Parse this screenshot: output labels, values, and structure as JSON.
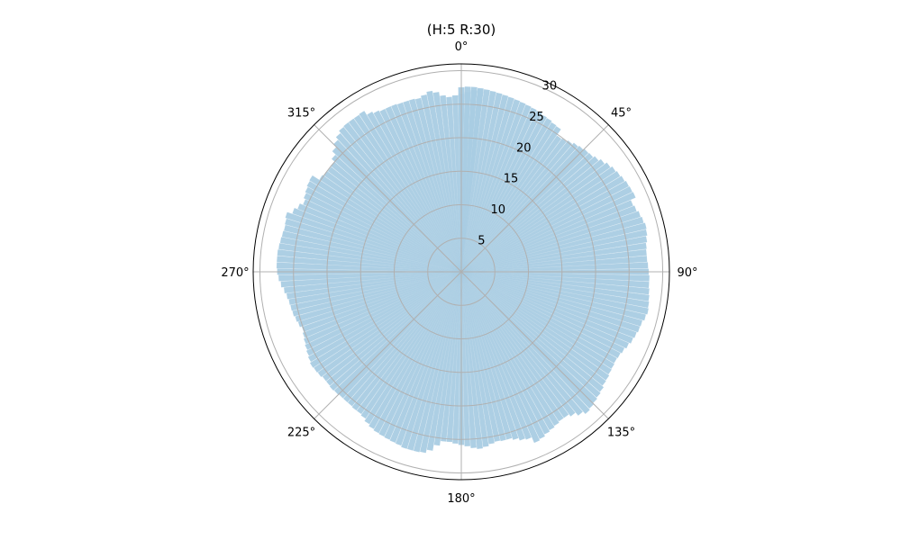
{
  "chart_data": {
    "type": "bar",
    "projection": "polar",
    "title": "(H:5  R:30)",
    "theta_zero_location": "N",
    "theta_direction": "clockwise",
    "angular_ticks": [
      "0°",
      "45°",
      "90°",
      "135°",
      "180°",
      "225°",
      "270°",
      "315°"
    ],
    "radial_ticks": [
      5,
      10,
      15,
      20,
      25,
      30
    ],
    "rlim": [
      0,
      31
    ],
    "grid": true,
    "bar_color": "#a9cce3",
    "bar_alpha": 0.95,
    "bins": 180,
    "bin_width_deg": 2,
    "values": [
      27.5,
      27.6,
      27.6,
      27.5,
      27.4,
      27.3,
      27.2,
      27.1,
      27.0,
      26.9,
      26.8,
      26.7,
      26.6,
      26.5,
      26.3,
      26.2,
      26.0,
      25.9,
      24.8,
      24.9,
      25.2,
      25.5,
      25.7,
      25.9,
      26.0,
      26.3,
      26.7,
      27.1,
      27.4,
      27.6,
      27.8,
      28.0,
      28.1,
      28.2,
      27.4,
      27.6,
      27.9,
      28.1,
      28.3,
      28.2,
      28.0,
      27.8,
      27.7,
      27.7,
      27.8,
      27.9,
      28.0,
      28.0,
      28.1,
      28.2,
      28.3,
      28.4,
      28.2,
      27.9,
      27.8,
      27.6,
      27.4,
      27.1,
      26.8,
      26.6,
      26.5,
      26.6,
      26.7,
      26.9,
      27.0,
      27.3,
      27.5,
      27.7,
      27.9,
      28.1,
      27.6,
      27.0,
      26.6,
      26.6,
      26.8,
      27.0,
      27.2,
      27.5,
      27.7,
      26.8,
      26.6,
      26.2,
      25.9,
      25.9,
      25.8,
      26.0,
      26.3,
      26.5,
      26.3,
      26.0,
      25.8,
      25.6,
      25.4,
      25.4,
      26.1,
      27.0,
      27.5,
      27.6,
      27.6,
      27.6,
      27.4,
      27.3,
      27.2,
      27.1,
      27.0,
      26.8,
      26.5,
      26.1,
      25.9,
      25.9,
      25.8,
      25.8,
      25.8,
      25.9,
      26.0,
      25.9,
      25.9,
      26.1,
      26.2,
      26.3,
      26.1,
      25.9,
      25.7,
      25.5,
      25.3,
      25.1,
      25.4,
      25.6,
      25.8,
      25.9,
      26.0,
      26.2,
      26.5,
      26.9,
      27.2,
      27.4,
      27.5,
      27.5,
      27.5,
      27.4,
      27.3,
      27.2,
      27.1,
      27.2,
      27.4,
      26.6,
      26.1,
      25.6,
      25.9,
      26.1,
      26.3,
      26.4,
      25.2,
      25.0,
      24.9,
      25.0,
      25.6,
      26.3,
      26.9,
      27.4,
      27.8,
      27.9,
      27.9,
      27.9,
      28.0,
      27.3,
      27.0,
      26.8,
      26.8,
      26.8,
      26.7,
      26.7,
      26.7,
      26.6,
      26.9,
      27.3,
      27.0,
      26.4,
      26.1,
      26.3,
      26.5,
      26.8,
      27.1,
      27.3
    ]
  }
}
